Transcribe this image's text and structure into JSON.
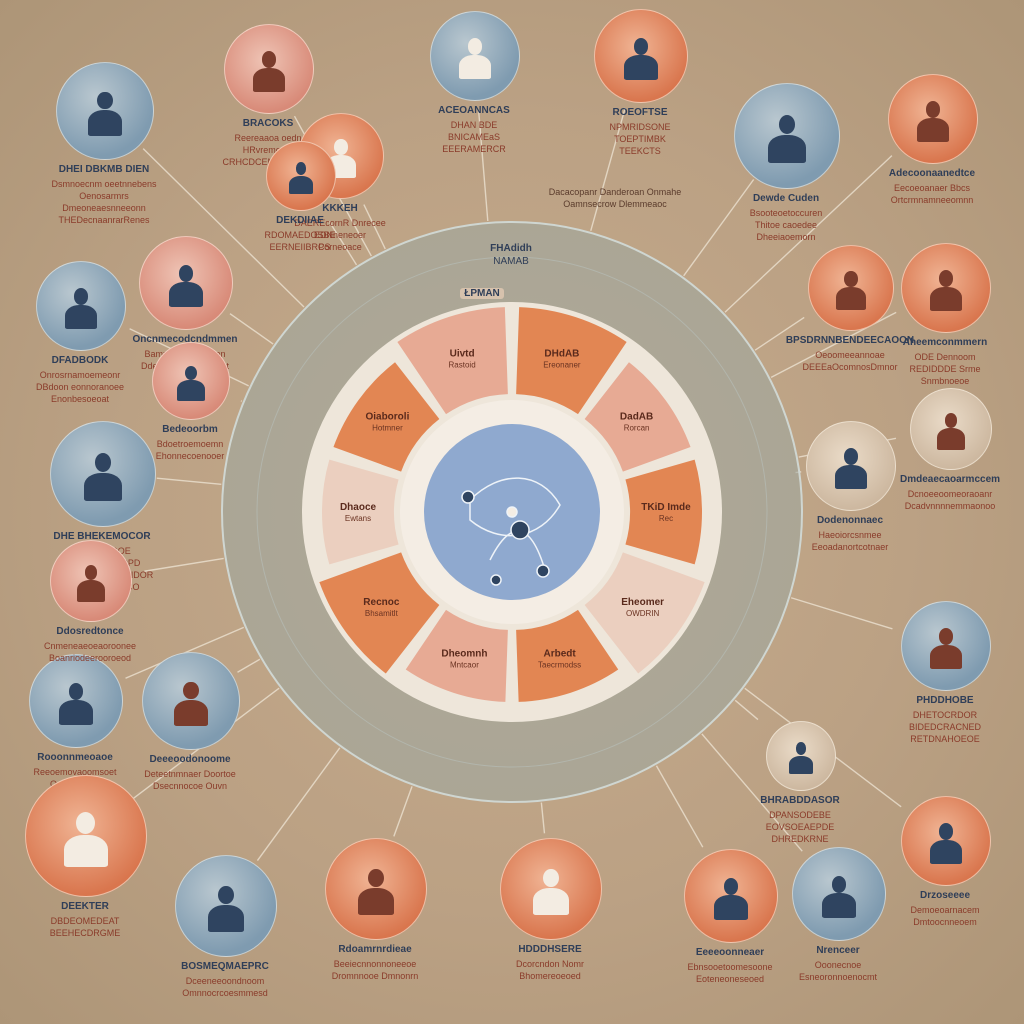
{
  "colors": {
    "background": "#bba184",
    "ring": "#9aa7a3",
    "inner_disc": "#eee6da",
    "center": "#8fa9cf",
    "segment": "#e07b44",
    "segment_light": "#e6a38c",
    "title_text": "#2f3e58",
    "body_text": "#8a3b2a"
  },
  "hub": {
    "top_label": "FHAdidh",
    "top_sublabel": "NAMAB",
    "tag": "ŁPMAN",
    "center_icon": "people-network-icon",
    "segments": [
      {
        "label": "DHdAB",
        "sub": "Ereonaner"
      },
      {
        "label": "DadAB",
        "sub": "Rorcan"
      },
      {
        "label": "TKiD Imde",
        "sub": "Rec"
      },
      {
        "label": "Eheomer",
        "sub": "OWDRIN"
      },
      {
        "label": "Arbedt",
        "sub": "Taecrmodss"
      },
      {
        "label": "Dheomnh",
        "sub": "Mntcaor"
      },
      {
        "label": "Recnoc",
        "sub": "Bhsamitlt"
      },
      {
        "label": "Dhaoce",
        "sub": "Ewtans"
      },
      {
        "label": "Oiaboroli",
        "sub": "Hotmner"
      },
      {
        "label": "Uivtd",
        "sub": "Rastoid"
      }
    ]
  },
  "mid_caption": "Dacacopanr Danderoan Onmahe\nOamnsecrow Dlemmeaoc",
  "nodes": [
    {
      "title": "DHEI DBKMB DIEN",
      "text": "Dsmnoecnm oeetnnebens\nOenosarmrs\nDmeoneaesnneeonn\nTHEDecnaanrarRenes",
      "icon": "lecture-scene-icon"
    },
    {
      "title": "BRACOKS",
      "text": "Reereaaoa oedn\nHRvremoe e\nCRHCDCEMANDODS",
      "icon": "team-meeting-icon"
    },
    {
      "title": "ACEOANNCAS",
      "text": "DHAN BDE\nBNICAMEaS\nEEERAMERCR",
      "icon": "frame-icon"
    },
    {
      "title": "ROEOFTSE",
      "text": "NPMRIDSONE\nTOEPTIMBK\nTEEKCTS",
      "icon": "person-portrait-icon"
    },
    {
      "title": "Adecoonaanedtce",
      "text": "Eecoeoanaer Bbcs\nOrtcrmnamneeomnn",
      "icon": "speaker-icon"
    },
    {
      "title": "Dewde Cuden",
      "text": "Bsooteoetoccuren\nThitoe caoedee\nDheeiaoemorn",
      "icon": "presenter-icon"
    },
    {
      "title": "KKKEH",
      "text": "DAEREcornR Dnrecee\nEDNneneoer\nPorneoace",
      "icon": "meeting-table-icon"
    },
    {
      "title": "Oncnmecodcndmmen",
      "text": "Bamneonetoeenaen\nDdenodcecmmaoeont",
      "icon": "crowd-icon"
    },
    {
      "title": "DFADBODK",
      "text": "Onrosrnamoemeonr\nDBdoon eonnoranoee\nEnonbesoeoat",
      "icon": "group-icon"
    },
    {
      "title": "BPSDRNNBENDEECAOON",
      "text": "Oeoomeeannoae\nDEEEaOcomnosDmnor",
      "icon": "stage-icon"
    },
    {
      "title": "Aheemconmmern",
      "text": "ODE Dennoom\nREDIDDDE Srme\nSnmbnoeoe",
      "icon": "lecture-scene-icon"
    },
    {
      "title": "Dmdeaecaoarmccem",
      "text": "Dcnoeeoomeoraoanr\nDcadvnnnnemmaonoo",
      "icon": "document-icon"
    },
    {
      "title": "DHE BHEKEMOCOR",
      "text": "BHPNBDOOE\nDECOMNASTOPD\nEDNREDNOSEACNDOR\nORDEMOMOCCO",
      "icon": "person-bust-icon"
    },
    {
      "title": "Dodenonnaec",
      "text": "Haeoiorcsnmee\nEeoadanortcotnaer",
      "icon": "warning-triangle-icon"
    },
    {
      "title": "Deeeoodonoome",
      "text": "Deteetnmnaer Doortoe\nDsecnnocoe Ouvn",
      "icon": "team-scene-icon"
    },
    {
      "title": "Rooonnmeoaoe",
      "text": "Reeoemovaoomsoet\nOnnetrtonan",
      "icon": "speaker-icon"
    },
    {
      "title": "PHDDHOBE",
      "text": "DHETOCRDOR\nBIDEDCRACNED\nRETDNAHOEOE",
      "icon": "podium-icon"
    },
    {
      "title": "DEEKTER",
      "text": "DBDEOMEDEAT\nBEEHECDRGME",
      "icon": "person-bust-icon"
    },
    {
      "title": "BOSMEQMAEPRC",
      "text": "Dceeneeoondnoom\nOmnnocrcoesmmesd",
      "icon": "seminar-icon"
    },
    {
      "title": "Rdoamrnrdieae",
      "text": "Beeiecnnonnoneeoe\nDromnnooe Dmnonrn",
      "icon": "presenter-icon"
    },
    {
      "title": "HDDDHSERE",
      "text": "Dcorcndon Nomr\nBhomereoeoed",
      "icon": "team-meeting-icon"
    },
    {
      "title": "Eeeeoonneaer",
      "text": "Ebnsooetoomesoone\nEoteneoneseoed",
      "icon": "group-icon"
    },
    {
      "title": "Nrenceer",
      "text": "Ooonecnoe\nEsneoronnoenocmt",
      "icon": "person-portrait-icon"
    },
    {
      "title": "Drzoseeee",
      "text": "Demoeoarnacem\nDmtoocnneoem",
      "icon": "crowd-icon"
    },
    {
      "title": "BHRABDDASOR",
      "text": "DPANSODEBE\nEOVSOEAEPDE\nDHREDKRNE",
      "icon": "frame-icon"
    },
    {
      "title": "Ddosredtonce",
      "text": "Cnmeneaeoeaoroonee\nBoanriodeerooroeod",
      "icon": "stage-icon"
    },
    {
      "title": "Bedeoorbm",
      "text": "Bdoetroemoemn\nEhonnecoenooer",
      "icon": "meeting-table-icon"
    },
    {
      "title": "DEKDIIAE",
      "text": "RDOMAEDOSBE\nEERNEIIBRCS",
      "icon": "document-icon"
    }
  ]
}
